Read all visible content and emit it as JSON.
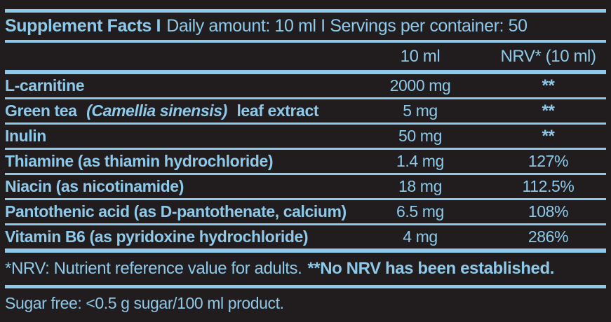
{
  "colors": {
    "background": "#211d1e",
    "accent_blue": "#8ec9e9"
  },
  "header": {
    "bold_part": "Supplement Facts I",
    "regular_part": "Daily amount: 10 ml I Servings per container: 50"
  },
  "columns": {
    "amount_label": "10 ml",
    "nrv_label": "NRV* (10 ml)"
  },
  "table": {
    "rows": [
      {
        "name": "L-carnitine",
        "amount": "2000 mg",
        "nrv": "**"
      },
      {
        "name": "Green tea",
        "name_italic": "(Camellia sinensis)",
        "name_suffix": "leaf extract",
        "amount": "5 mg",
        "nrv": "**"
      },
      {
        "name": "Inulin",
        "amount": "50 mg",
        "nrv": "**"
      },
      {
        "name": "Thiamine (as thiamin hydrochloride)",
        "amount": "1.4 mg",
        "nrv": "127%"
      },
      {
        "name": "Niacin (as nicotinamide)",
        "amount": "18 mg",
        "nrv": "112.5%"
      },
      {
        "name": "Pantothenic acid (as D-pantothenate, calcium)",
        "amount": "6.5 mg",
        "nrv": "108%"
      },
      {
        "name": "Vitamin B6 (as pyridoxine hydrochloride)",
        "amount": "4 mg",
        "nrv": "286%"
      }
    ]
  },
  "footnotes": {
    "nrv_note": "*NRV: Nutrient reference value for adults.",
    "established_note": "**No NRV has been established.",
    "sugar_free": "Sugar free: <0.5 g sugar/100 ml product."
  }
}
